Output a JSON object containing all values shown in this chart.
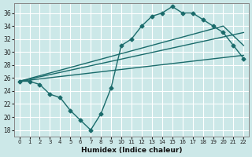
{
  "bg_color": "#cce8e8",
  "grid_color": "#ffffff",
  "line_color": "#1a6b6b",
  "xlabel": "Humidex (Indice chaleur)",
  "ylim": [
    17,
    37.5
  ],
  "xlim": [
    -0.5,
    22.5
  ],
  "yticks": [
    18,
    20,
    22,
    24,
    26,
    28,
    30,
    32,
    34,
    36
  ],
  "xticks": [
    0,
    1,
    2,
    3,
    4,
    5,
    6,
    7,
    8,
    9,
    10,
    11,
    12,
    13,
    14,
    15,
    16,
    17,
    18,
    19,
    20,
    21,
    22
  ],
  "series1_x": [
    0,
    1,
    2,
    3,
    4,
    5,
    6,
    7,
    8,
    9,
    10,
    11,
    12,
    13,
    14,
    15,
    16,
    17,
    18,
    19,
    20,
    21,
    22
  ],
  "series1_y": [
    25.5,
    25.5,
    25.0,
    23.5,
    23.0,
    21.0,
    19.5,
    18.0,
    20.5,
    24.5,
    31.0,
    32.0,
    34.0,
    35.5,
    36.0,
    37.0,
    36.0,
    36.0,
    35.0,
    34.0,
    33.0,
    31.0,
    29.0
  ],
  "series2_x": [
    0,
    22
  ],
  "series2_y": [
    25.5,
    29.5
  ],
  "series3_x": [
    0,
    20,
    22
  ],
  "series3_y": [
    25.5,
    34.0,
    31.0
  ],
  "series4_x": [
    0,
    22
  ],
  "series4_y": [
    25.5,
    33.0
  ],
  "marker_style": "D",
  "markersize": 2.5,
  "linewidth": 1.0,
  "tick_fontsize": 5.5,
  "xlabel_fontsize": 6.5
}
